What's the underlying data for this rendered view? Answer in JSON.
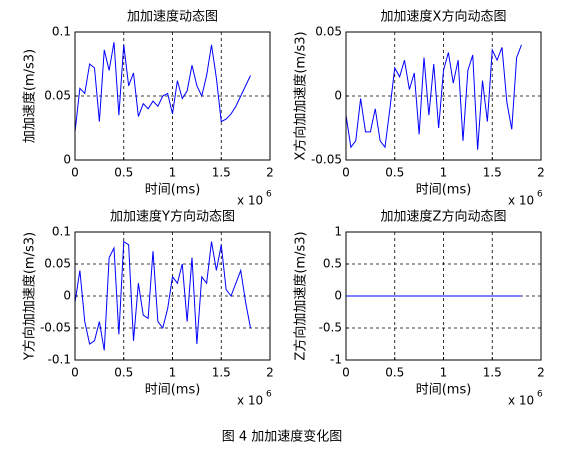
{
  "chart_data": [
    {
      "type": "line",
      "title": "加加速度动态图",
      "xlabel": "时间(ms)",
      "ylabel": "加加速度(m/s3)",
      "x_multiplier": "x 10",
      "x_multiplier_exponent": "6",
      "x": [
        0,
        50000,
        100000,
        150000,
        200000,
        250000,
        300000,
        350000,
        400000,
        450000,
        500000,
        550000,
        600000,
        650000,
        700000,
        750000,
        800000,
        850000,
        900000,
        950000,
        1000000,
        1050000,
        1100000,
        1150000,
        1200000,
        1250000,
        1300000,
        1350000,
        1400000,
        1450000,
        1500000,
        1550000,
        1600000,
        1650000,
        1700000,
        1750000,
        1800000
      ],
      "values": [
        0.022,
        0.056,
        0.052,
        0.075,
        0.072,
        0.03,
        0.086,
        0.07,
        0.092,
        0.035,
        0.09,
        0.058,
        0.068,
        0.034,
        0.044,
        0.04,
        0.046,
        0.042,
        0.05,
        0.052,
        0.036,
        0.062,
        0.048,
        0.054,
        0.074,
        0.058,
        0.05,
        0.066,
        0.09,
        0.064,
        0.03,
        0.032,
        0.036,
        0.042,
        0.05,
        0.058,
        0.066
      ],
      "color": "#0000ff",
      "grid": true,
      "xlim": [
        0,
        2000000
      ],
      "xticks": [
        0,
        {
          "value": 500000,
          "label": "0.5"
        },
        {
          "value": 1000000,
          "label": "1"
        },
        {
          "value": 1500000,
          "label": "1.5"
        },
        {
          "value": 2000000,
          "label": "2"
        }
      ],
      "ylim": [
        0,
        0.1
      ],
      "yticks": [
        0,
        0.05,
        0.1
      ]
    },
    {
      "type": "line",
      "title": "加加速度X方向动态图",
      "xlabel": "时间(ms)",
      "ylabel": "X方向加加速度(m/s3)",
      "x_multiplier": "x 10",
      "x_multiplier_exponent": "6",
      "x": [
        0,
        50000,
        100000,
        150000,
        200000,
        250000,
        300000,
        350000,
        400000,
        450000,
        500000,
        550000,
        600000,
        650000,
        700000,
        750000,
        800000,
        850000,
        900000,
        950000,
        1000000,
        1050000,
        1100000,
        1150000,
        1200000,
        1250000,
        1300000,
        1350000,
        1400000,
        1450000,
        1500000,
        1550000,
        1600000,
        1650000,
        1700000,
        1750000,
        1800000
      ],
      "values": [
        -0.015,
        -0.04,
        -0.035,
        -0.002,
        -0.028,
        -0.028,
        -0.01,
        -0.035,
        -0.04,
        -0.01,
        0.022,
        0.015,
        0.028,
        0.005,
        0.018,
        -0.03,
        0.03,
        -0.015,
        0.025,
        -0.025,
        0.02,
        0.034,
        0.01,
        0.028,
        -0.035,
        0.02,
        0.032,
        -0.042,
        0.012,
        -0.02,
        0.036,
        0.028,
        0.038,
        -0.005,
        -0.026,
        0.03,
        0.04
      ],
      "color": "#0000ff",
      "grid": true,
      "xlim": [
        0,
        2000000
      ],
      "xticks": [
        0,
        {
          "value": 500000,
          "label": "0.5"
        },
        {
          "value": 1000000,
          "label": "1"
        },
        {
          "value": 1500000,
          "label": "1.5"
        },
        {
          "value": 2000000,
          "label": "2"
        }
      ],
      "ylim": [
        -0.05,
        0.05
      ],
      "yticks": [
        -0.05,
        0,
        0.05
      ]
    },
    {
      "type": "line",
      "title": "加加速度Y方向动态图",
      "xlabel": "时间(ms)",
      "ylabel": "Y方向加加速度(m/s3)",
      "x_multiplier": "x 10",
      "x_multiplier_exponent": "6",
      "x": [
        0,
        50000,
        100000,
        150000,
        200000,
        250000,
        300000,
        350000,
        400000,
        450000,
        500000,
        550000,
        600000,
        650000,
        700000,
        750000,
        800000,
        850000,
        900000,
        950000,
        1000000,
        1050000,
        1100000,
        1150000,
        1200000,
        1250000,
        1300000,
        1350000,
        1400000,
        1450000,
        1500000,
        1550000,
        1600000,
        1650000,
        1700000,
        1750000,
        1800000
      ],
      "values": [
        -0.01,
        0.04,
        -0.04,
        -0.075,
        -0.07,
        -0.04,
        -0.085,
        0.06,
        0.075,
        -0.06,
        0.085,
        0.08,
        -0.07,
        0.02,
        -0.03,
        -0.035,
        0.07,
        -0.04,
        -0.05,
        -0.02,
        0.03,
        0.02,
        0.05,
        -0.04,
        0.06,
        -0.075,
        0.03,
        0.02,
        0.085,
        0.04,
        0.08,
        0.01,
        0,
        0.02,
        0.04,
        -0.01,
        -0.05
      ],
      "color": "#0000ff",
      "grid": true,
      "xlim": [
        0,
        2000000
      ],
      "xticks": [
        0,
        {
          "value": 500000,
          "label": "0.5"
        },
        {
          "value": 1000000,
          "label": "1"
        },
        {
          "value": 1500000,
          "label": "1.5"
        },
        {
          "value": 2000000,
          "label": "2"
        }
      ],
      "ylim": [
        -0.1,
        0.1
      ],
      "yticks": [
        -0.1,
        -0.05,
        0,
        0.05,
        0.1
      ]
    },
    {
      "type": "line",
      "title": "加加速度Z方向动态图",
      "xlabel": "时间(ms)",
      "ylabel": "Z方向加加速度(m/s3)",
      "x_multiplier": "x 10",
      "x_multiplier_exponent": "6",
      "x": [
        0,
        50000,
        100000,
        150000,
        200000,
        250000,
        300000,
        350000,
        400000,
        450000,
        500000,
        550000,
        600000,
        650000,
        700000,
        750000,
        800000,
        850000,
        900000,
        950000,
        1000000,
        1050000,
        1100000,
        1150000,
        1200000,
        1250000,
        1300000,
        1350000,
        1400000,
        1450000,
        1500000,
        1550000,
        1600000,
        1650000,
        1700000,
        1750000,
        1800000
      ],
      "values": [
        0,
        0,
        0,
        0,
        0,
        0,
        0,
        0,
        0,
        0,
        0,
        0,
        0,
        0,
        0,
        0,
        0,
        0,
        0,
        0,
        0,
        0,
        0,
        0,
        0,
        0,
        0,
        0,
        0,
        0,
        0,
        0,
        0,
        0,
        0,
        0,
        0
      ],
      "color": "#0000ff",
      "grid": true,
      "xlim": [
        0,
        2000000
      ],
      "xticks": [
        0,
        {
          "value": 500000,
          "label": "0.5"
        },
        {
          "value": 1000000,
          "label": "1"
        },
        {
          "value": 1500000,
          "label": "1.5"
        },
        {
          "value": 2000000,
          "label": "2"
        }
      ],
      "ylim": [
        -1,
        1
      ],
      "yticks": [
        -1,
        -0.5,
        0,
        0.5,
        1
      ]
    }
  ],
  "caption": "图 4 加加速度变化图"
}
